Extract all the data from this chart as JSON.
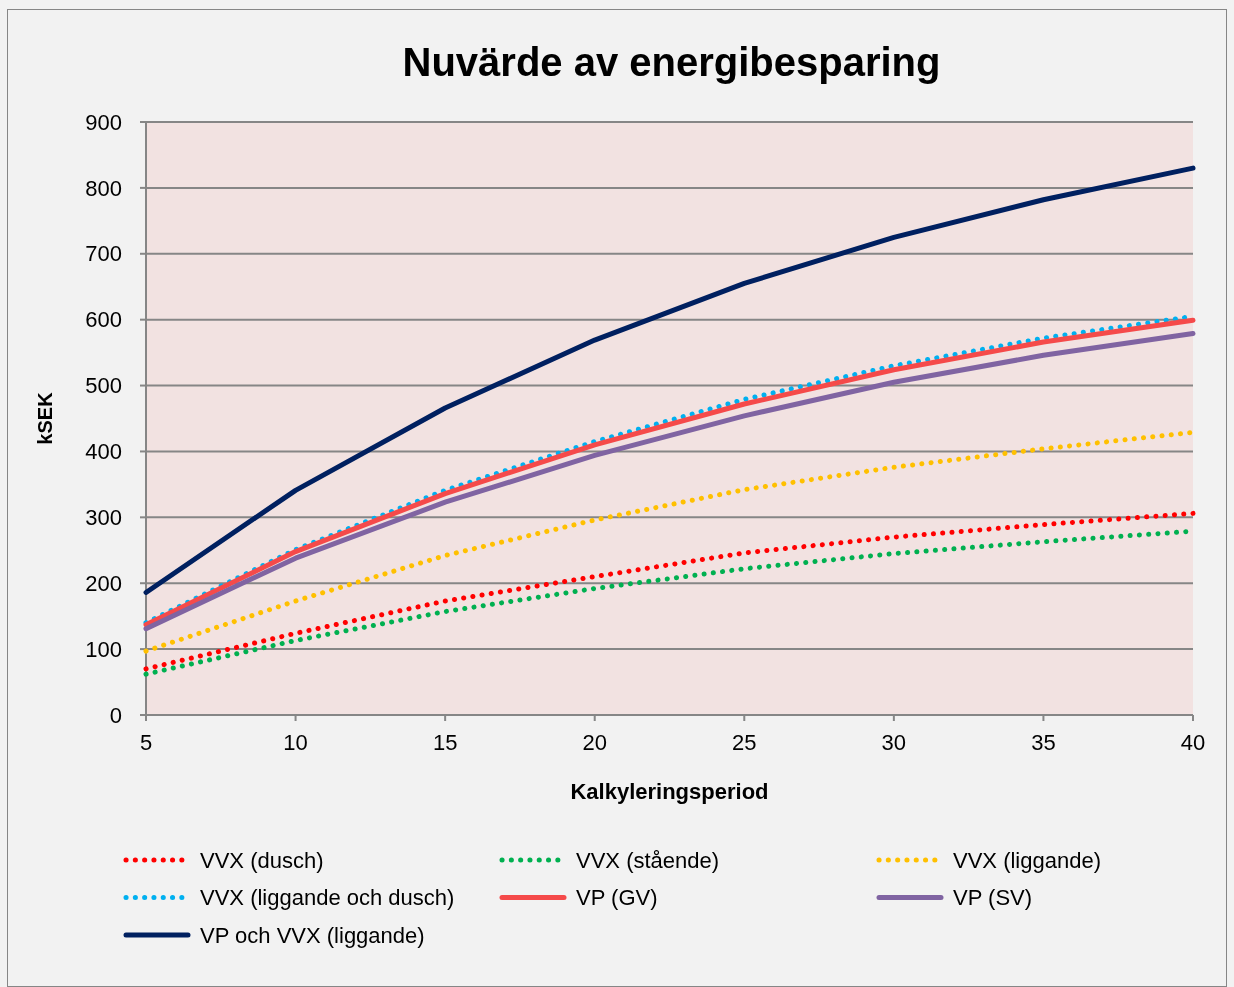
{
  "chart_data": {
    "type": "line",
    "title": "Nuvärde av energibesparing",
    "xlabel": "Kalkyleringsperiod",
    "ylabel": "kSEK",
    "x": [
      5,
      10,
      15,
      20,
      25,
      30,
      35,
      40
    ],
    "xlim": [
      5,
      40
    ],
    "xticks": [
      5,
      10,
      15,
      20,
      25,
      30,
      35,
      40
    ],
    "ylim": [
      0,
      900
    ],
    "yticks": [
      0,
      100,
      200,
      300,
      400,
      500,
      600,
      700,
      800,
      900
    ],
    "grid": "y",
    "legend": "bottom",
    "marker": "none",
    "series": [
      {
        "name": "VVX (dusch)",
        "color": "#ff0000",
        "line_style": "dotted",
        "values": [
          70,
          124,
          173,
          210,
          246,
          270,
          289,
          306
        ]
      },
      {
        "name": "VVX (stående)",
        "color": "#00b050",
        "line_style": "dotted",
        "values": [
          62,
          113,
          157,
          192,
          222,
          245,
          263,
          279
        ]
      },
      {
        "name": "VVX (liggande)",
        "color": "#ffc000",
        "line_style": "dotted",
        "values": [
          97,
          173,
          242,
          296,
          342,
          376,
          404,
          429
        ]
      },
      {
        "name": "VVX (liggande och dusch)",
        "color": "#00b0f0",
        "line_style": "dotted",
        "values": [
          140,
          251,
          341,
          415,
          479,
          530,
          572,
          605
        ]
      },
      {
        "name": "VP (GV)",
        "color": "#f54a4a",
        "line_style": "solid",
        "values": [
          137,
          248,
          336,
          410,
          472,
          524,
          566,
          599
        ]
      },
      {
        "name": "VP (SV)",
        "color": "#8064a2",
        "line_style": "solid",
        "values": [
          131,
          238,
          323,
          394,
          454,
          505,
          546,
          579
        ]
      },
      {
        "name": "VP och VVX (liggande)",
        "color": "#002060",
        "line_style": "solid",
        "values": [
          186,
          341,
          466,
          569,
          655,
          725,
          782,
          830
        ]
      }
    ]
  }
}
